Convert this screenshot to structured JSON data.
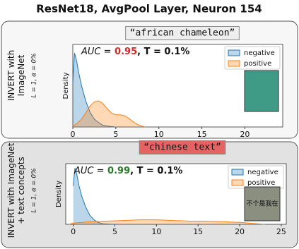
{
  "title": "ResNet18, AvgPool Layer, Neuron 154",
  "chart_data": [
    {
      "type": "area",
      "panel_label": [
        "INVERT with",
        "ImageNet"
      ],
      "panel_sublabel": "L = 1, α = 0%",
      "concept": "“african chameleon”",
      "concept_color": "#eeeeee",
      "auc_text": "AUC =",
      "auc": 0.95,
      "auc_color": "#d62728",
      "threshold": ", T = 0.1%",
      "ylabel": "Density",
      "xlim": [
        0,
        24.4
      ],
      "xticks": [
        0,
        5,
        10,
        15,
        20
      ],
      "ylim": [
        0,
        0.95
      ],
      "legend": "upper right",
      "image_color": "#3f9a86",
      "series": [
        {
          "name": "negative",
          "color": "#1f77b4",
          "x": [
            0,
            0.2,
            0.4,
            0.7,
            1,
            1.5,
            2,
            2.5,
            3,
            3.5,
            4,
            5
          ],
          "values": [
            0.5,
            0.85,
            0.78,
            0.62,
            0.48,
            0.3,
            0.17,
            0.09,
            0.05,
            0.02,
            0.01,
            0
          ]
        },
        {
          "name": "positive",
          "color": "#ff7f0e",
          "x": [
            0,
            0.5,
            1,
            1.5,
            2,
            2.5,
            3,
            3.5,
            4,
            4.5,
            5,
            5.5,
            6,
            6.5,
            7,
            7.5,
            8,
            8.5
          ],
          "values": [
            0.01,
            0.04,
            0.09,
            0.16,
            0.24,
            0.29,
            0.3,
            0.27,
            0.21,
            0.16,
            0.14,
            0.14,
            0.13,
            0.1,
            0.06,
            0.03,
            0.01,
            0
          ]
        }
      ]
    },
    {
      "type": "area",
      "panel_label": [
        "INVERT with ImageNet",
        "+ text concepts"
      ],
      "panel_sublabel": "L = 1, α = 0%",
      "concept": "“chinese text”",
      "concept_color": "#e46464",
      "auc_text": "AUC =",
      "auc": 0.99,
      "auc_color": "#2a7a2a",
      "threshold": ", T = 0.1%",
      "ylabel": "Density",
      "xlim": [
        -0.9,
        25.6
      ],
      "xticks": [
        0,
        5,
        10,
        15,
        20,
        25
      ],
      "ylim": [
        0,
        0.95
      ],
      "legend": "upper right",
      "image_color": "#8a8f80",
      "image_text": "不个是我在",
      "series": [
        {
          "name": "negative",
          "color": "#1f77b4",
          "x": [
            0,
            0.2,
            0.4,
            0.7,
            1,
            1.5,
            2,
            2.5,
            3,
            3.5,
            4,
            5
          ],
          "values": [
            0.6,
            0.88,
            0.8,
            0.6,
            0.45,
            0.27,
            0.14,
            0.07,
            0.03,
            0.01,
            0.005,
            0
          ]
        },
        {
          "name": "positive",
          "color": "#ff7f0e",
          "x": [
            -0.5,
            0,
            2,
            4,
            6,
            8,
            10,
            12,
            14,
            16,
            18,
            20,
            22,
            23
          ],
          "values": [
            0,
            0.02,
            0.04,
            0.05,
            0.06,
            0.07,
            0.07,
            0.06,
            0.05,
            0.05,
            0.04,
            0.03,
            0.01,
            0
          ]
        }
      ]
    }
  ]
}
